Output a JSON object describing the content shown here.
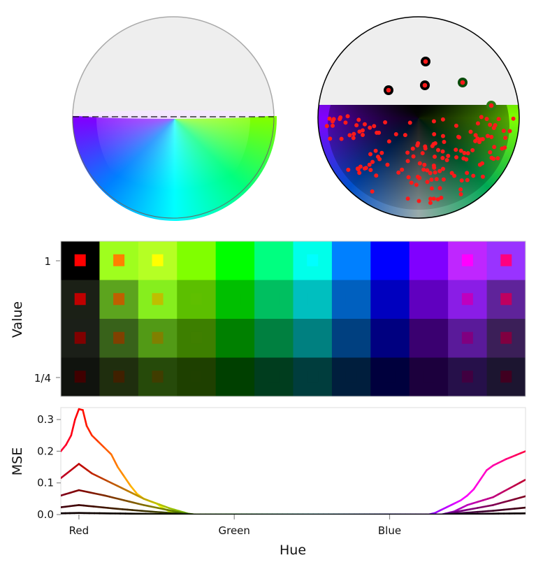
{
  "chart_data": [
    {
      "type": "scatter",
      "panel": "hemisphere-color-solid",
      "colors": {
        "top_fill": "#eeeeee",
        "outline": "#aaaaaa",
        "left": "#7f00ff",
        "bottom": "#00ffff",
        "right": "#80ff00",
        "center": "#ffffff"
      }
    },
    {
      "type": "scatter",
      "panel": "hemisphere-dark-with-points",
      "colors": {
        "top_fill": "#eeeeee",
        "outline": "#000000",
        "point": "#ff1a1a",
        "center": "#000000"
      }
    },
    {
      "type": "heatmap",
      "ylabel": "Value",
      "yticks": [
        "1",
        "1/4"
      ],
      "rows": [
        {
          "bg": [
            "#000000",
            "#9ffe1e",
            "#b5ff24",
            "#80ff00",
            "#00ff00",
            "#00ff80",
            "#00ffea",
            "#0080ff",
            "#0000ff",
            "#8000ff",
            "#bf26ff",
            "#9933ff"
          ],
          "inner": [
            "#ff0000",
            "#ff8000",
            "#ffff00",
            "#80ff00",
            "#00ff00",
            "#00ff80",
            "#00ffff",
            "#0080ff",
            "#0000ff",
            "#8000ff",
            "#ff00ff",
            "#ff0080"
          ]
        },
        {
          "bg": [
            "#1b2016",
            "#5ca41e",
            "#86ee1e",
            "#5cbf00",
            "#00bf00",
            "#00bf60",
            "#00bfbf",
            "#0060bf",
            "#0000bf",
            "#6000bf",
            "#8a1de6",
            "#5f239a"
          ],
          "inner": [
            "#bf0000",
            "#bf6000",
            "#bfbf00",
            "#5fbf00",
            "#00bf00",
            "#00bf60",
            "#00bfbf",
            "#0060bf",
            "#0000bf",
            "#6000bf",
            "#bf00bf",
            "#bf0060"
          ]
        },
        {
          "bg": [
            "#1b1f18",
            "#38621a",
            "#529a16",
            "#3d7f00",
            "#008000",
            "#008040",
            "#008080",
            "#004080",
            "#000080",
            "#3a0070",
            "#5a1a9a",
            "#3b1f58"
          ],
          "inner": [
            "#800000",
            "#804000",
            "#808000",
            "#3f7f00",
            "#008000",
            "#008040",
            "#008080",
            "#004080",
            "#000080",
            "#3a0070",
            "#800080",
            "#800040"
          ]
        },
        {
          "bg": [
            "#10130e",
            "#1f2e0e",
            "#264a0a",
            "#1e4000",
            "#004000",
            "#003d1e",
            "#003d3d",
            "#001e3d",
            "#00003d",
            "#1c003d",
            "#26104a",
            "#1c1530"
          ],
          "inner": [
            "#400000",
            "#402000",
            "#403d00",
            "#1f4000",
            "#004000",
            "#003d1e",
            "#003d3d",
            "#001e3d",
            "#00003d",
            "#1c003d",
            "#400040",
            "#400020"
          ]
        }
      ]
    },
    {
      "type": "line",
      "xlabel": "Hue",
      "ylabel": "MSE",
      "xlim": [
        -14,
        345
      ],
      "ylim": [
        0,
        0.335
      ],
      "xticks": [
        {
          "value": 0,
          "label": "Red"
        },
        {
          "value": 120,
          "label": "Green"
        },
        {
          "value": 240,
          "label": "Blue"
        }
      ],
      "yticks": [
        {
          "value": 0,
          "label": "0.0"
        },
        {
          "value": 0.1,
          "label": "0.1"
        },
        {
          "value": 0.2,
          "label": "0.2"
        },
        {
          "value": 0.3,
          "label": "0.3"
        }
      ],
      "series": [
        {
          "value_level": 1.0,
          "x": [
            -14,
            -10,
            -6,
            -3,
            0,
            3,
            6,
            10,
            15,
            20,
            25,
            30,
            35,
            40,
            45,
            50,
            55,
            60,
            65,
            70,
            75,
            80,
            270,
            275,
            280,
            285,
            290,
            295,
            300,
            305,
            310,
            315,
            320,
            330,
            345
          ],
          "y": [
            0.2,
            0.22,
            0.25,
            0.3,
            0.333,
            0.33,
            0.28,
            0.25,
            0.23,
            0.21,
            0.19,
            0.15,
            0.12,
            0.09,
            0.065,
            0.05,
            0.042,
            0.035,
            0.02,
            0.01,
            0.003,
            0,
            0,
            0.005,
            0.015,
            0.025,
            0.035,
            0.045,
            0.06,
            0.08,
            0.11,
            0.14,
            0.155,
            0.175,
            0.2
          ]
        },
        {
          "value_level": 0.75,
          "x": [
            -14,
            0,
            10,
            30,
            50,
            70,
            85,
            90,
            280,
            290,
            300,
            320,
            345
          ],
          "y": [
            0.115,
            0.16,
            0.13,
            0.09,
            0.05,
            0.02,
            0.002,
            0,
            0,
            0.01,
            0.03,
            0.055,
            0.11
          ]
        },
        {
          "value_level": 0.5,
          "x": [
            -14,
            0,
            20,
            50,
            80,
            90,
            280,
            300,
            320,
            345
          ],
          "y": [
            0.06,
            0.077,
            0.06,
            0.03,
            0.005,
            0,
            0,
            0.015,
            0.03,
            0.058
          ]
        },
        {
          "value_level": 0.25,
          "x": [
            -14,
            0,
            30,
            60,
            90,
            280,
            320,
            345
          ],
          "y": [
            0.023,
            0.03,
            0.018,
            0.008,
            0,
            0,
            0.012,
            0.022
          ]
        },
        {
          "value_level": 0.05,
          "x": [
            -14,
            0,
            40,
            90,
            280,
            320,
            345
          ],
          "y": [
            0.004,
            0.005,
            0.003,
            0,
            0,
            0.003,
            0.004
          ]
        }
      ]
    }
  ]
}
